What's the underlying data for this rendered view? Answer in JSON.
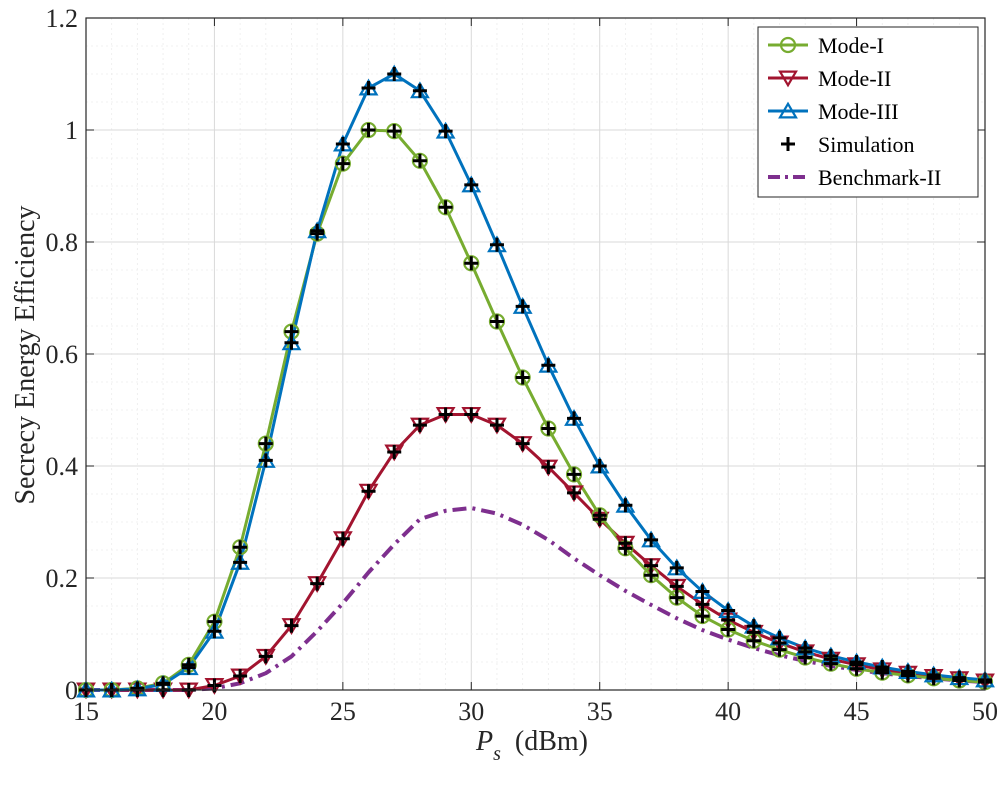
{
  "chart_data": {
    "type": "line",
    "title": "",
    "xlabel_symbol": "P",
    "xlabel_subscript": "s",
    "xlabel_unit": "(dBm)",
    "ylabel": "Secrecy Energy Efficiency",
    "xlim": [
      15,
      50
    ],
    "ylim": [
      0,
      1.2
    ],
    "xticks": [
      "15",
      "20",
      "25",
      "30",
      "35",
      "40",
      "45",
      "50"
    ],
    "yticks": [
      "0",
      "0.2",
      "0.4",
      "0.6",
      "0.8",
      "1",
      "1.2"
    ],
    "grid": true,
    "minor_grid": true,
    "legend_position": "top-right",
    "x": [
      15,
      16,
      17,
      18,
      19,
      20,
      21,
      22,
      23,
      24,
      25,
      26,
      27,
      28,
      29,
      30,
      31,
      32,
      33,
      34,
      35,
      36,
      37,
      38,
      39,
      40,
      41,
      42,
      43,
      44,
      45,
      46,
      47,
      48,
      49,
      50
    ],
    "series": [
      {
        "name": "Mode-I",
        "color": "#77AC30",
        "marker": "circle",
        "values": [
          0.0,
          0.0,
          0.003,
          0.012,
          0.045,
          0.122,
          0.255,
          0.44,
          0.64,
          0.815,
          0.94,
          1.0,
          0.998,
          0.945,
          0.862,
          0.762,
          0.658,
          0.558,
          0.467,
          0.385,
          0.312,
          0.253,
          0.205,
          0.165,
          0.132,
          0.108,
          0.088,
          0.072,
          0.058,
          0.047,
          0.038,
          0.031,
          0.026,
          0.021,
          0.017,
          0.014
        ]
      },
      {
        "name": "Mode-II",
        "color": "#A2142F",
        "marker": "triangle-down",
        "values": [
          0.0,
          0.0,
          0.0,
          0.0,
          0.0,
          0.008,
          0.025,
          0.06,
          0.115,
          0.19,
          0.27,
          0.355,
          0.425,
          0.473,
          0.492,
          0.492,
          0.473,
          0.44,
          0.398,
          0.352,
          0.305,
          0.262,
          0.222,
          0.185,
          0.153,
          0.125,
          0.103,
          0.084,
          0.068,
          0.055,
          0.045,
          0.036,
          0.03,
          0.024,
          0.02,
          0.016
        ]
      },
      {
        "name": "Mode-III",
        "color": "#0072BD",
        "marker": "triangle-up",
        "values": [
          0.0,
          0.0,
          0.002,
          0.01,
          0.04,
          0.105,
          0.228,
          0.41,
          0.62,
          0.82,
          0.975,
          1.075,
          1.1,
          1.07,
          0.998,
          0.902,
          0.795,
          0.685,
          0.58,
          0.485,
          0.4,
          0.33,
          0.268,
          0.218,
          0.176,
          0.142,
          0.114,
          0.093,
          0.075,
          0.061,
          0.05,
          0.041,
          0.033,
          0.027,
          0.022,
          0.018
        ]
      },
      {
        "name": "Simulation",
        "color": "#000000",
        "marker": "plus",
        "overlays": [
          "Mode-I",
          "Mode-II",
          "Mode-III"
        ]
      },
      {
        "name": "Benchmark-II",
        "color": "#7E2F8E",
        "marker": "none",
        "linestyle": "dash-dot",
        "values": [
          0.0,
          0.0,
          0.0,
          0.0,
          0.0,
          0.003,
          0.012,
          0.03,
          0.06,
          0.105,
          0.155,
          0.21,
          0.26,
          0.305,
          0.32,
          0.325,
          0.315,
          0.295,
          0.268,
          0.235,
          0.205,
          0.177,
          0.152,
          0.128,
          0.107,
          0.09,
          0.075,
          0.062,
          0.052,
          0.043,
          0.036,
          0.03,
          0.025,
          0.021,
          0.017,
          0.014
        ]
      }
    ]
  }
}
